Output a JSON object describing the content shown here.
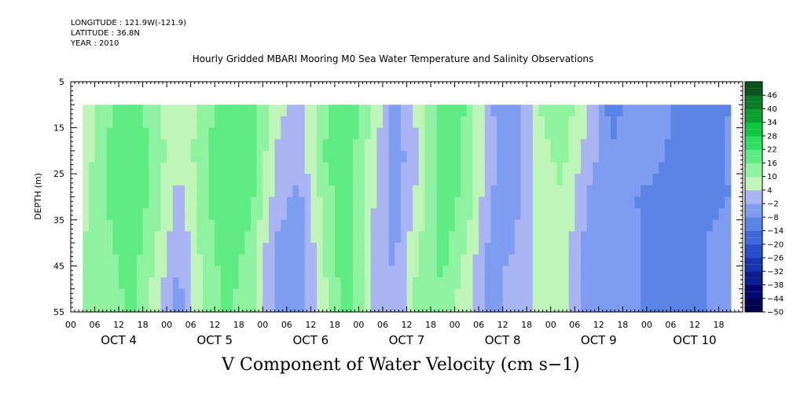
{
  "header": {
    "longitude": "LONGITUDE : 121.9W(-121.9)",
    "latitude": "LATITUDE : 36.8N",
    "year": "YEAR : 2010"
  },
  "chart_data": {
    "type": "heatmap",
    "title": "Hourly Gridded MBARI Mooring M0 Sea Water Temperature and Salinity Observations",
    "xlabel": "V Component of Water Velocity (cm s−1)",
    "ylabel": "DEPTH (m)",
    "ylim": [
      5,
      55
    ],
    "y_inverted": true,
    "data_depth_range": [
      10,
      55
    ],
    "y_ticks": [
      5,
      15,
      25,
      35,
      45,
      55
    ],
    "x_hours_range": [
      0,
      168
    ],
    "data_hours_range": [
      3,
      165
    ],
    "x_hour_labels": [
      "00",
      "06",
      "12",
      "18",
      "00",
      "06",
      "12",
      "18",
      "00",
      "06",
      "12",
      "18",
      "00",
      "06",
      "12",
      "18",
      "00",
      "06",
      "12",
      "18",
      "00",
      "06",
      "12",
      "18",
      "00",
      "06",
      "12",
      "18"
    ],
    "x_day_labels": [
      "OCT 4",
      "OCT 5",
      "OCT 6",
      "OCT 7",
      "OCT 8",
      "OCT 9",
      "OCT 10"
    ],
    "colorbar_labels": [
      "46",
      "40",
      "34",
      "28",
      "22",
      "16",
      "10",
      "4",
      "−2",
      "−8",
      "−14",
      "−20",
      "−26",
      "−32",
      "−38",
      "−44",
      "−50"
    ],
    "colorbar_range": [
      -50,
      52
    ],
    "colorbar_levels": [
      -50,
      -44,
      -38,
      -32,
      -26,
      -20,
      -14,
      -8,
      -2,
      4,
      10,
      16,
      22,
      28,
      34,
      40,
      46,
      52
    ],
    "colorbar_colors": [
      "#00004f",
      "#00086e",
      "#0c1c8f",
      "#1a33b0",
      "#2a4dcc",
      "#3f68dd",
      "#5c83e6",
      "#7e9df0",
      "#a9b5f2",
      "#bff5b9",
      "#8ff2a0",
      "#5eeb83",
      "#2fe060",
      "#10c840",
      "#0aa12f",
      "#0b7c26",
      "#08561b"
    ],
    "description_rows_depth": [
      10,
      55
    ],
    "velocity_grid": {
      "hours": [
        3,
        9,
        15,
        21,
        27,
        33,
        39,
        45,
        51,
        57,
        63,
        69,
        75,
        81,
        87,
        93,
        99,
        105,
        111,
        117,
        123,
        129,
        135,
        141,
        147,
        153,
        159,
        165
      ],
      "depths": [
        10,
        20,
        30,
        40,
        50
      ],
      "values": [
        [
          6,
          14,
          20,
          12,
          3,
          12,
          20,
          18,
          6,
          2,
          14,
          22,
          10,
          -4,
          6,
          20,
          16,
          -2,
          -6,
          10,
          14,
          4,
          -10,
          -6,
          -2,
          -12,
          -14,
          -8
        ],
        [
          6,
          16,
          22,
          14,
          4,
          14,
          22,
          20,
          4,
          0,
          16,
          20,
          8,
          -6,
          4,
          22,
          14,
          0,
          -6,
          8,
          12,
          2,
          -8,
          -4,
          -6,
          -14,
          -12,
          -6
        ],
        [
          8,
          16,
          22,
          14,
          2,
          14,
          22,
          18,
          2,
          -4,
          12,
          22,
          6,
          -6,
          6,
          20,
          14,
          -2,
          -4,
          6,
          10,
          -2,
          -6,
          -8,
          -10,
          -12,
          -10,
          -8
        ],
        [
          10,
          14,
          20,
          10,
          -2,
          12,
          20,
          14,
          -2,
          -6,
          10,
          22,
          4,
          -4,
          10,
          18,
          10,
          -4,
          -2,
          6,
          8,
          -4,
          -8,
          -6,
          -14,
          -10,
          -8,
          -6
        ],
        [
          10,
          12,
          18,
          8,
          -4,
          10,
          18,
          12,
          -4,
          -8,
          8,
          20,
          4,
          -2,
          12,
          16,
          6,
          -4,
          0,
          6,
          6,
          -4,
          -6,
          -6,
          -12,
          -12,
          -8,
          -4
        ]
      ]
    }
  }
}
